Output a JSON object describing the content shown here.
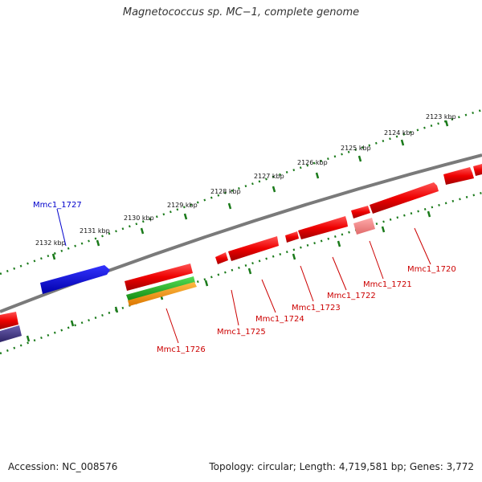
{
  "title": "Magnetococcus sp. MC−1, complete genome",
  "footer": {
    "accession": "Accession: NC_008576",
    "info": "Topology: circular; Length: 4,719,581 bp; Genes: 3,772"
  },
  "colors": {
    "backbone": "#808080",
    "tick": "#1a7a1a",
    "gene_red": "#ee0000",
    "gene_pink": "#f08080",
    "gene_blue": "#0000dd",
    "gene_green": "#22bb22",
    "gene_orange": "#ff9900",
    "gene_purple": "#4b3f8a",
    "label_red": "#cc0000",
    "label_blue": "#0000cc"
  },
  "ticks": [
    "2123 kbp",
    "2124 kbp",
    "2125 kbp",
    "2126 kbp",
    "2127 kbp",
    "2128 kbp",
    "2129 kbp",
    "2130 kbp",
    "2131 kbp",
    "2132 kbp"
  ],
  "gene_labels": [
    "Mmc1_1720",
    "Mmc1_1721",
    "Mmc1_1722",
    "Mmc1_1723",
    "Mmc1_1724",
    "Mmc1_1725",
    "Mmc1_1726",
    "Mmc1_1727"
  ]
}
